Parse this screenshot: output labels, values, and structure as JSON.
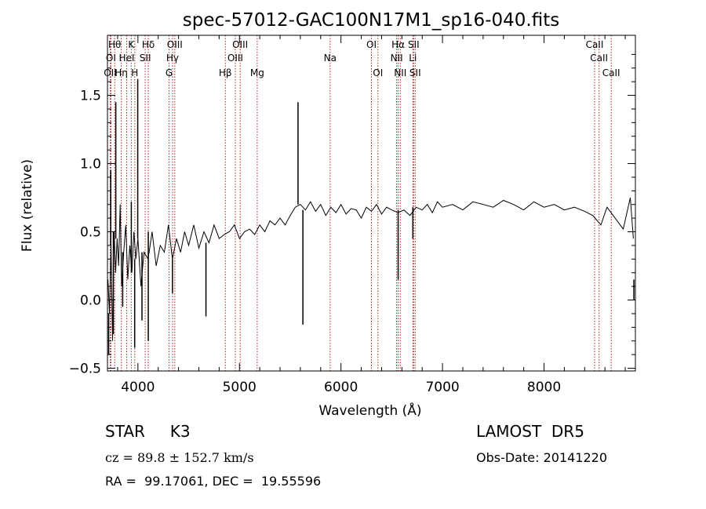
{
  "chart_data": {
    "type": "line",
    "title": "spec-57012-GAC100N17M1_sp16-040.fits",
    "xlabel": "Wavelength (Å)",
    "ylabel": "Flux (relative)",
    "xlim": [
      3700,
      8900
    ],
    "ylim": [
      -0.52,
      1.94
    ],
    "xticks": [
      4000,
      5000,
      6000,
      7000,
      8000
    ],
    "yticks": [
      -0.5,
      0.0,
      0.5,
      1.0,
      1.5
    ],
    "ytick_labels": [
      "−0.5",
      "0.0",
      "0.5",
      "1.0",
      "1.5"
    ],
    "line_color": "#000000",
    "marker_color": "#b22222",
    "spectrum": {
      "x": [
        3705,
        3720,
        3735,
        3750,
        3765,
        3780,
        3795,
        3810,
        3825,
        3840,
        3860,
        3880,
        3900,
        3920,
        3940,
        3960,
        3980,
        4000,
        4030,
        4060,
        4100,
        4140,
        4180,
        4220,
        4260,
        4300,
        4340,
        4380,
        4420,
        4460,
        4500,
        4550,
        4600,
        4650,
        4700,
        4750,
        4800,
        4850,
        4900,
        4950,
        5000,
        5050,
        5100,
        5150,
        5200,
        5250,
        5300,
        5350,
        5400,
        5450,
        5500,
        5550,
        5600,
        5650,
        5700,
        5750,
        5800,
        5850,
        5900,
        5950,
        6000,
        6050,
        6100,
        6150,
        6200,
        6250,
        6300,
        6350,
        6400,
        6450,
        6500,
        6560,
        6620,
        6680,
        6740,
        6800,
        6850,
        6900,
        6950,
        7000,
        7100,
        7200,
        7300,
        7400,
        7500,
        7600,
        7700,
        7800,
        7900,
        8000,
        8100,
        8200,
        8300,
        8400,
        8480,
        8560,
        8620,
        8700,
        8780,
        8850,
        8880
      ],
      "y": [
        0.15,
        -0.1,
        0.4,
        -0.3,
        0.5,
        0.2,
        0.45,
        0.25,
        0.7,
        0.1,
        0.35,
        0.55,
        0.15,
        0.4,
        0.2,
        0.5,
        0.3,
        0.45,
        0.1,
        0.35,
        0.3,
        0.5,
        0.25,
        0.4,
        0.35,
        0.55,
        0.3,
        0.45,
        0.35,
        0.5,
        0.4,
        0.55,
        0.38,
        0.5,
        0.42,
        0.55,
        0.45,
        0.48,
        0.5,
        0.55,
        0.45,
        0.5,
        0.52,
        0.48,
        0.55,
        0.5,
        0.58,
        0.55,
        0.6,
        0.55,
        0.62,
        0.68,
        0.7,
        0.66,
        0.72,
        0.65,
        0.7,
        0.62,
        0.68,
        0.64,
        0.7,
        0.63,
        0.67,
        0.66,
        0.6,
        0.68,
        0.65,
        0.7,
        0.63,
        0.68,
        0.66,
        0.64,
        0.66,
        0.62,
        0.68,
        0.66,
        0.7,
        0.64,
        0.72,
        0.68,
        0.7,
        0.66,
        0.72,
        0.7,
        0.68,
        0.73,
        0.7,
        0.66,
        0.72,
        0.68,
        0.7,
        0.66,
        0.68,
        0.65,
        0.62,
        0.55,
        0.68,
        0.6,
        0.52,
        0.75,
        0.45
      ]
    },
    "spikes": [
      {
        "x": 3712,
        "y": -0.4
      },
      {
        "x": 3732,
        "y": 0.95
      },
      {
        "x": 3758,
        "y": -0.25
      },
      {
        "x": 3782,
        "y": 1.45
      },
      {
        "x": 3850,
        "y": -0.05
      },
      {
        "x": 3935,
        "y": 0.72
      },
      {
        "x": 3968,
        "y": -0.35
      },
      {
        "x": 3998,
        "y": 1.62
      },
      {
        "x": 4040,
        "y": -0.15
      },
      {
        "x": 4102,
        "y": -0.3
      },
      {
        "x": 4340,
        "y": 0.05
      },
      {
        "x": 4670,
        "y": -0.12
      },
      {
        "x": 5577,
        "y": 1.45
      },
      {
        "x": 5625,
        "y": -0.18
      },
      {
        "x": 6563,
        "y": 0.15
      },
      {
        "x": 6708,
        "y": 0.45
      },
      {
        "x": 8885,
        "y": -0.0
      }
    ],
    "lines": [
      {
        "x": 3727,
        "label": "OII",
        "row": 3
      },
      {
        "x": 3734,
        "label": "OI",
        "row": 2
      },
      {
        "x": 3771,
        "label": "Hθ",
        "row": 1
      },
      {
        "x": 3836,
        "label": "Hη",
        "row": 3
      },
      {
        "x": 3889,
        "label": "HeI",
        "row": 2
      },
      {
        "x": 3934,
        "label": "K",
        "row": 1
      },
      {
        "x": 3969,
        "label": "H",
        "row": 3
      },
      {
        "x": 4072,
        "label": "SII",
        "row": 2
      },
      {
        "x": 4102,
        "label": "Hδ",
        "row": 1
      },
      {
        "x": 4307,
        "label": "G",
        "row": 3
      },
      {
        "x": 4341,
        "label": "Hγ",
        "row": 2
      },
      {
        "x": 4363,
        "label": "OIII",
        "row": 1
      },
      {
        "x": 4861,
        "label": "Hβ",
        "row": 3
      },
      {
        "x": 4959,
        "label": "OIII",
        "row": 2
      },
      {
        "x": 5007,
        "label": "OIII",
        "row": 1
      },
      {
        "x": 5175,
        "label": "Mg",
        "row": 3
      },
      {
        "x": 5893,
        "label": "Na",
        "row": 2
      },
      {
        "x": 6300,
        "label": "OI",
        "row": 1
      },
      {
        "x": 6364,
        "label": "OI",
        "row": 3
      },
      {
        "x": 6548,
        "label": "NII",
        "row": 2
      },
      {
        "x": 6563,
        "label": "Hα",
        "row": 1
      },
      {
        "x": 6584,
        "label": "NII",
        "row": 3
      },
      {
        "x": 6708,
        "label": "Li",
        "row": 2
      },
      {
        "x": 6716,
        "label": "SII",
        "row": 1
      },
      {
        "x": 6731,
        "label": "SII",
        "row": 3
      },
      {
        "x": 8498,
        "label": "CaII",
        "row": 1
      },
      {
        "x": 8542,
        "label": "CaII",
        "row": 2
      },
      {
        "x": 8662,
        "label": "CaII",
        "row": 3
      }
    ]
  },
  "info": {
    "object_class": "STAR     K3",
    "survey": "LAMOST  DR5",
    "cz": "cz = 89.8 ± 152.7 km/s",
    "obs_date": "Obs-Date: 20141220",
    "radec": "RA =  99.17061, DEC =  19.55596"
  }
}
